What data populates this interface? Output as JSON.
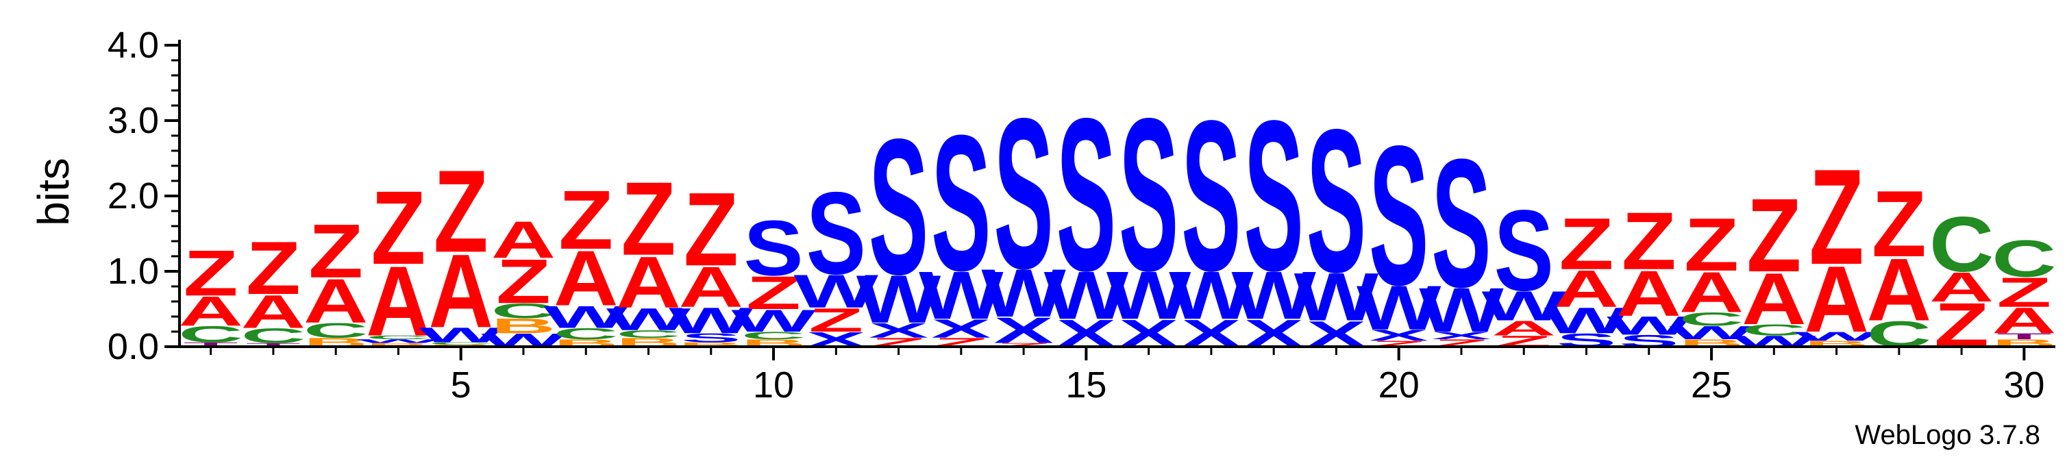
{
  "chart_data": {
    "type": "sequence-logo",
    "title": "",
    "xlabel": "",
    "ylabel": "bits",
    "ylim": [
      0,
      4.0
    ],
    "y_ticks": [
      0,
      1,
      2,
      3,
      4
    ],
    "y_tick_labels": [
      "0.0",
      "1.0",
      "2.0",
      "3.0",
      "4.0"
    ],
    "x_ticks": [
      5,
      10,
      15,
      20,
      25,
      30
    ],
    "x_tick_labels": [
      "5",
      "10",
      "15",
      "20",
      "25",
      "30"
    ],
    "x_range": [
      0.5,
      30.5
    ],
    "colors": {
      "A": "#ff0000",
      "Z": "#ff0000",
      "C": "#228b22",
      "S": "#0000ff",
      "W": "#0000ff",
      "X": "#0000ff",
      "B": "#ff8c00",
      "T": "#800080"
    },
    "columns": [
      {
        "position": 1,
        "stack": [
          {
            "letter": "T",
            "bits": 0.06
          },
          {
            "letter": "C",
            "bits": 0.22
          },
          {
            "letter": "A",
            "bits": 0.4
          },
          {
            "letter": "Z",
            "bits": 0.62
          }
        ]
      },
      {
        "position": 2,
        "stack": [
          {
            "letter": "T",
            "bits": 0.05
          },
          {
            "letter": "C",
            "bits": 0.2
          },
          {
            "letter": "A",
            "bits": 0.45
          },
          {
            "letter": "Z",
            "bits": 0.72
          }
        ]
      },
      {
        "position": 3,
        "stack": [
          {
            "letter": "B",
            "bits": 0.12
          },
          {
            "letter": "C",
            "bits": 0.2
          },
          {
            "letter": "A",
            "bits": 0.6
          },
          {
            "letter": "Z",
            "bits": 0.73
          }
        ]
      },
      {
        "position": 4,
        "stack": [
          {
            "letter": "B",
            "bits": 0.05
          },
          {
            "letter": "W",
            "bits": 0.05
          },
          {
            "letter": "C",
            "bits": 0.05
          },
          {
            "letter": "A",
            "bits": 0.95
          },
          {
            "letter": "Z",
            "bits": 1.0
          }
        ]
      },
      {
        "position": 5,
        "stack": [
          {
            "letter": "B",
            "bits": 0.03
          },
          {
            "letter": "C",
            "bits": 0.03
          },
          {
            "letter": "W",
            "bits": 0.2
          },
          {
            "letter": "A",
            "bits": 1.0
          },
          {
            "letter": "Z",
            "bits": 1.12
          }
        ]
      },
      {
        "position": 6,
        "stack": [
          {
            "letter": "W",
            "bits": 0.18
          },
          {
            "letter": "B",
            "bits": 0.2
          },
          {
            "letter": "C",
            "bits": 0.2
          },
          {
            "letter": "Z",
            "bits": 0.6
          },
          {
            "letter": "A",
            "bits": 0.5
          }
        ]
      },
      {
        "position": 7,
        "stack": [
          {
            "letter": "B",
            "bits": 0.1
          },
          {
            "letter": "C",
            "bits": 0.15
          },
          {
            "letter": "W",
            "bits": 0.3
          },
          {
            "letter": "A",
            "bits": 0.75
          },
          {
            "letter": "Z",
            "bits": 0.8
          }
        ]
      },
      {
        "position": 8,
        "stack": [
          {
            "letter": "B",
            "bits": 0.12
          },
          {
            "letter": "C",
            "bits": 0.1
          },
          {
            "letter": "W",
            "bits": 0.3
          },
          {
            "letter": "A",
            "bits": 0.7
          },
          {
            "letter": "Z",
            "bits": 1.0
          }
        ]
      },
      {
        "position": 9,
        "stack": [
          {
            "letter": "B",
            "bits": 0.06
          },
          {
            "letter": "S",
            "bits": 0.12
          },
          {
            "letter": "W",
            "bits": 0.35
          },
          {
            "letter": "A",
            "bits": 0.55
          },
          {
            "letter": "Z",
            "bits": 1.0
          }
        ]
      },
      {
        "position": 10,
        "stack": [
          {
            "letter": "B",
            "bits": 0.1
          },
          {
            "letter": "C",
            "bits": 0.1
          },
          {
            "letter": "W",
            "bits": 0.3
          },
          {
            "letter": "Z",
            "bits": 0.45
          },
          {
            "letter": "S",
            "bits": 0.75
          }
        ]
      },
      {
        "position": 11,
        "stack": [
          {
            "letter": "X",
            "bits": 0.2
          },
          {
            "letter": "Z",
            "bits": 0.32
          },
          {
            "letter": "W",
            "bits": 0.45
          },
          {
            "letter": "S",
            "bits": 1.12
          }
        ]
      },
      {
        "position": 12,
        "stack": [
          {
            "letter": "Z",
            "bits": 0.12
          },
          {
            "letter": "X",
            "bits": 0.2
          },
          {
            "letter": "W",
            "bits": 0.65
          },
          {
            "letter": "S",
            "bits": 1.85
          }
        ]
      },
      {
        "position": 13,
        "stack": [
          {
            "letter": "Z",
            "bits": 0.12
          },
          {
            "letter": "X",
            "bits": 0.25
          },
          {
            "letter": "W",
            "bits": 0.65
          },
          {
            "letter": "S",
            "bits": 1.85
          }
        ]
      },
      {
        "position": 14,
        "stack": [
          {
            "letter": "Z",
            "bits": 0.05
          },
          {
            "letter": "X",
            "bits": 0.35
          },
          {
            "letter": "W",
            "bits": 0.65
          },
          {
            "letter": "S",
            "bits": 2.05
          }
        ]
      },
      {
        "position": 15,
        "stack": [
          {
            "letter": "X",
            "bits": 0.37
          },
          {
            "letter": "W",
            "bits": 0.65
          },
          {
            "letter": "S",
            "bits": 2.08
          }
        ]
      },
      {
        "position": 16,
        "stack": [
          {
            "letter": "X",
            "bits": 0.37
          },
          {
            "letter": "W",
            "bits": 0.65
          },
          {
            "letter": "S",
            "bits": 2.08
          }
        ]
      },
      {
        "position": 17,
        "stack": [
          {
            "letter": "X",
            "bits": 0.37
          },
          {
            "letter": "W",
            "bits": 0.65
          },
          {
            "letter": "S",
            "bits": 2.05
          }
        ]
      },
      {
        "position": 18,
        "stack": [
          {
            "letter": "X",
            "bits": 0.37
          },
          {
            "letter": "W",
            "bits": 0.65
          },
          {
            "letter": "S",
            "bits": 2.05
          }
        ]
      },
      {
        "position": 19,
        "stack": [
          {
            "letter": "X",
            "bits": 0.35
          },
          {
            "letter": "W",
            "bits": 0.65
          },
          {
            "letter": "S",
            "bits": 1.95
          }
        ]
      },
      {
        "position": 20,
        "stack": [
          {
            "letter": "Z",
            "bits": 0.08
          },
          {
            "letter": "X",
            "bits": 0.15
          },
          {
            "letter": "W",
            "bits": 0.6
          },
          {
            "letter": "S",
            "bits": 1.9
          }
        ]
      },
      {
        "position": 21,
        "stack": [
          {
            "letter": "Z",
            "bits": 0.1
          },
          {
            "letter": "X",
            "bits": 0.1
          },
          {
            "letter": "W",
            "bits": 0.6
          },
          {
            "letter": "S",
            "bits": 1.75
          }
        ]
      },
      {
        "position": 22,
        "stack": [
          {
            "letter": "Z",
            "bits": 0.15
          },
          {
            "letter": "A",
            "bits": 0.2
          },
          {
            "letter": "W",
            "bits": 0.4
          },
          {
            "letter": "S",
            "bits": 1.1
          }
        ]
      },
      {
        "position": 23,
        "stack": [
          {
            "letter": "S",
            "bits": 0.18
          },
          {
            "letter": "W",
            "bits": 0.35
          },
          {
            "letter": "A",
            "bits": 0.5
          },
          {
            "letter": "Z",
            "bits": 0.7
          }
        ]
      },
      {
        "position": 24,
        "stack": [
          {
            "letter": "S",
            "bits": 0.16
          },
          {
            "letter": "W",
            "bits": 0.25
          },
          {
            "letter": "A",
            "bits": 0.62
          },
          {
            "letter": "Z",
            "bits": 0.78
          }
        ]
      },
      {
        "position": 25,
        "stack": [
          {
            "letter": "B",
            "bits": 0.1
          },
          {
            "letter": "W",
            "bits": 0.18
          },
          {
            "letter": "C",
            "bits": 0.18
          },
          {
            "letter": "A",
            "bits": 0.55
          },
          {
            "letter": "Z",
            "bits": 0.72
          }
        ]
      },
      {
        "position": 26,
        "stack": [
          {
            "letter": "W",
            "bits": 0.15
          },
          {
            "letter": "C",
            "bits": 0.15
          },
          {
            "letter": "A",
            "bits": 0.7
          },
          {
            "letter": "Z",
            "bits": 1.0
          }
        ]
      },
      {
        "position": 27,
        "stack": [
          {
            "letter": "B",
            "bits": 0.08
          },
          {
            "letter": "W",
            "bits": 0.12
          },
          {
            "letter": "A",
            "bits": 0.9
          },
          {
            "letter": "Z",
            "bits": 1.3
          }
        ]
      },
      {
        "position": 28,
        "stack": [
          {
            "letter": "C",
            "bits": 0.35
          },
          {
            "letter": "A",
            "bits": 0.85
          },
          {
            "letter": "Z",
            "bits": 0.9
          }
        ]
      },
      {
        "position": 29,
        "stack": [
          {
            "letter": "Z",
            "bits": 0.6
          },
          {
            "letter": "A",
            "bits": 0.4
          },
          {
            "letter": "C",
            "bits": 0.75
          }
        ]
      },
      {
        "position": 30,
        "stack": [
          {
            "letter": "B",
            "bits": 0.1
          },
          {
            "letter": "T",
            "bits": 0.08
          },
          {
            "letter": "A",
            "bits": 0.35
          },
          {
            "letter": "Z",
            "bits": 0.4
          },
          {
            "letter": "C",
            "bits": 0.5
          }
        ]
      }
    ]
  },
  "footer": {
    "credit": "WebLogo 3.7.8"
  }
}
